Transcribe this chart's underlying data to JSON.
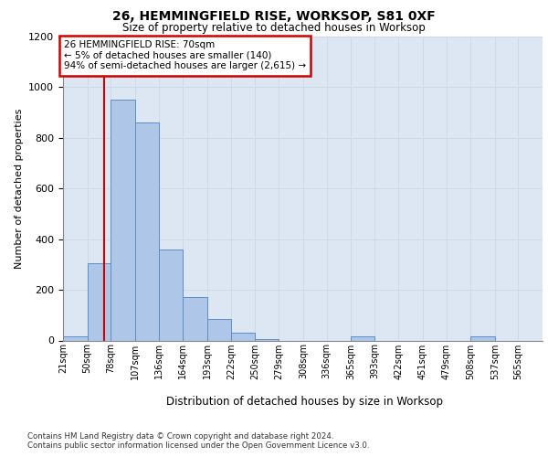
{
  "title1": "26, HEMMINGFIELD RISE, WORKSOP, S81 0XF",
  "title2": "Size of property relative to detached houses in Worksop",
  "xlabel": "Distribution of detached houses by size in Worksop",
  "ylabel": "Number of detached properties",
  "footer1": "Contains HM Land Registry data © Crown copyright and database right 2024.",
  "footer2": "Contains public sector information licensed under the Open Government Licence v3.0.",
  "annotation_line1": "26 HEMMINGFIELD RISE: 70sqm",
  "annotation_line2": "← 5% of detached houses are smaller (140)",
  "annotation_line3": "94% of semi-detached houses are larger (2,615) →",
  "bar_color": "#aec6e8",
  "bar_edge_color": "#5b8ec4",
  "annotation_box_color": "#cc0000",
  "property_line_color": "#cc0000",
  "bins": [
    21,
    50,
    78,
    107,
    136,
    164,
    193,
    222,
    250,
    279,
    308,
    336,
    365,
    393,
    422,
    451,
    479,
    508,
    537,
    565,
    594
  ],
  "counts": [
    15,
    305,
    950,
    860,
    360,
    170,
    85,
    30,
    5,
    0,
    0,
    0,
    15,
    0,
    0,
    0,
    0,
    15,
    0,
    0
  ],
  "property_size": 70,
  "ylim": [
    0,
    1200
  ],
  "yticks": [
    0,
    200,
    400,
    600,
    800,
    1000,
    1200
  ],
  "grid_color": "#d0d8e8",
  "bg_color": "#dde6f3"
}
